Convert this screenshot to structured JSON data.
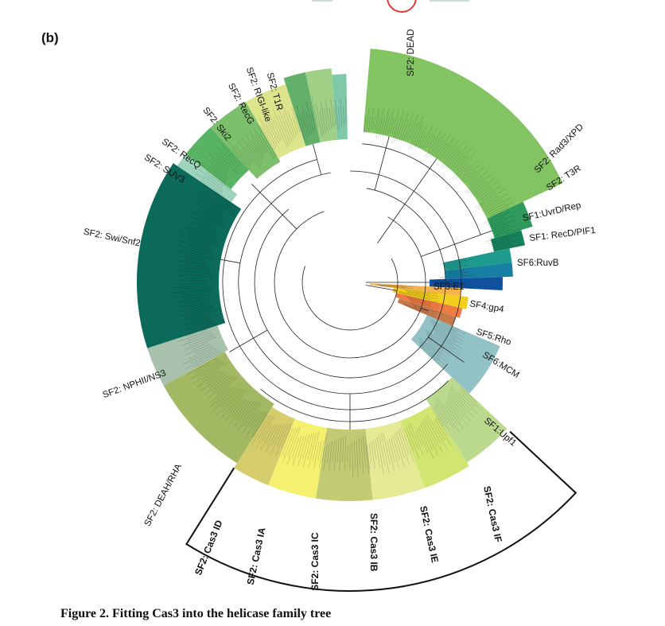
{
  "figure": {
    "panel_label": "(b)",
    "caption": "Figure 2. Fitting Cas3 into the helicase family tree"
  },
  "families": [
    {
      "label": "SF2: DEAD",
      "color": "#82c462"
    },
    {
      "label": "SF2: Rad3/XPD",
      "color": "#2e9a5c"
    },
    {
      "label": "SF2: T3R",
      "color": "#17815c"
    },
    {
      "label": "SF1:UvrD/Rep",
      "color": "#1f9a8f"
    },
    {
      "label": "SF1: RecD/PIF1",
      "color": "#177fa3"
    },
    {
      "label": "SF6:RuvB",
      "color": "#10519e"
    },
    {
      "label": "SF3:E1",
      "color": "#f6b24b"
    },
    {
      "label": "SF4:gp4",
      "color": "#f2cf1d"
    },
    {
      "label": "SF5:Rho",
      "color": "#ef7b44"
    },
    {
      "label": "SF6:MCM",
      "color": "#c8794a"
    },
    {
      "label": "SF1:Upf1",
      "color": "#93c2c6"
    },
    {
      "label": "SF2: Cas3 IF",
      "color": "#bcda8e"
    },
    {
      "label": "SF2: Cas3 IE",
      "color": "#d1e571"
    },
    {
      "label": "SF2: Cas3 IB",
      "color": "#e5ea95"
    },
    {
      "label": "SF2: Cas3 IC",
      "color": "#c2cb74"
    },
    {
      "label": "SF2: Cas3 IA",
      "color": "#f5f070"
    },
    {
      "label": "SF2: Cas3 ID",
      "color": "#d5cd6c"
    },
    {
      "label": "SF2: DEAH/RHA",
      "color": "#a2b862"
    },
    {
      "label": "SF2: NPHII/NS3",
      "color": "#a8c1ac"
    },
    {
      "label": "SF2: Swi/Snf2",
      "color": "#0b6a5a"
    },
    {
      "label": "SF2: SUV3",
      "color": "#9ed4bc"
    },
    {
      "label": "SF2: RecQ",
      "color": "#58b462"
    },
    {
      "label": "SF2: Ski2",
      "color": "#7cc06c"
    },
    {
      "label": "SF2: RecG",
      "color": "#dde58c"
    },
    {
      "label": "SF2: RIGI-like",
      "color": "#63b06a"
    },
    {
      "label": "SF2: T1R",
      "color": "#a0cf86"
    },
    {
      "label": "",
      "color": "#7fc8a8"
    }
  ],
  "cas3_group": [
    "SF2: Cas3 ID",
    "SF2: Cas3 IA",
    "SF2: Cas3 IC",
    "SF2: Cas3 IB",
    "SF2: Cas3 IE",
    "SF2: Cas3 IF"
  ]
}
